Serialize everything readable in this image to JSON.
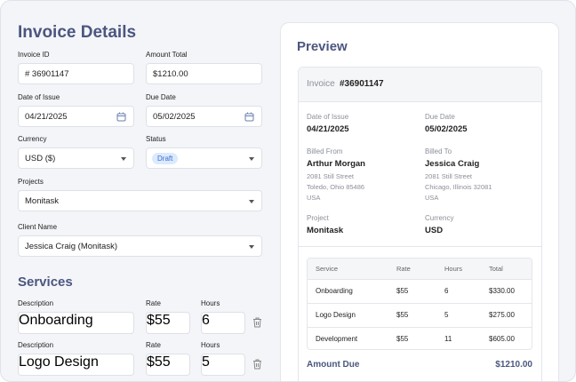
{
  "invoice_details": {
    "title": "Invoice Details",
    "invoice_id": {
      "label": "Invoice ID",
      "value": "# 36901147"
    },
    "amount_total": {
      "label": "Amount Total",
      "value": "$1210.00"
    },
    "date_of_issue": {
      "label": "Date of Issue",
      "value": "04/21/2025"
    },
    "due_date": {
      "label": "Due Date",
      "value": "05/02/2025"
    },
    "currency": {
      "label": "Currency",
      "value": "USD ($)"
    },
    "status": {
      "label": "Status",
      "value": "Draft"
    },
    "projects": {
      "label": "Projects",
      "value": "Monitask"
    },
    "client_name": {
      "label": "Client Name",
      "value": "Jessica Craig (Monitask)"
    }
  },
  "services": {
    "title": "Services",
    "rows": [
      {
        "description_label": "Description",
        "rate_label": "Rate",
        "hours_label": "Hours",
        "description": "Onboarding",
        "rate": "$55",
        "hours": "6"
      },
      {
        "description_label": "Description",
        "rate_label": "Rate",
        "hours_label": "Hours",
        "description": "Logo Design",
        "rate": "$55",
        "hours": "5"
      }
    ]
  },
  "preview": {
    "title": "Preview",
    "invoice_label": "Invoice",
    "invoice_number": "#36901147",
    "date_of_issue": {
      "label": "Date of Issue",
      "value": "04/21/2025"
    },
    "due_date": {
      "label": "Due Date",
      "value": "05/02/2025"
    },
    "billed_from": {
      "label": "Billed From",
      "name": "Arthur Morgan",
      "address": [
        "2081 Still Street",
        "Toledo, Ohio 85486",
        "USA"
      ]
    },
    "billed_to": {
      "label": "Billed To",
      "name": "Jessica Craig",
      "address": [
        "2081 Still Street",
        "Chicago, Illinois 32081",
        "USA"
      ]
    },
    "project": {
      "label": "Project",
      "value": "Monitask"
    },
    "currency": {
      "label": "Currency",
      "value": "USD"
    },
    "table": {
      "columns": [
        "Service",
        "Rate",
        "Hours",
        "Total"
      ],
      "rows": [
        [
          "Onboarding",
          "$55",
          "6",
          "$330.00"
        ],
        [
          "Logo Design",
          "$55",
          "5",
          "$275.00"
        ],
        [
          "Development",
          "$55",
          "11",
          "$605.00"
        ]
      ]
    },
    "amount_due": {
      "label": "Amount Due",
      "value": "$1210.00"
    }
  }
}
